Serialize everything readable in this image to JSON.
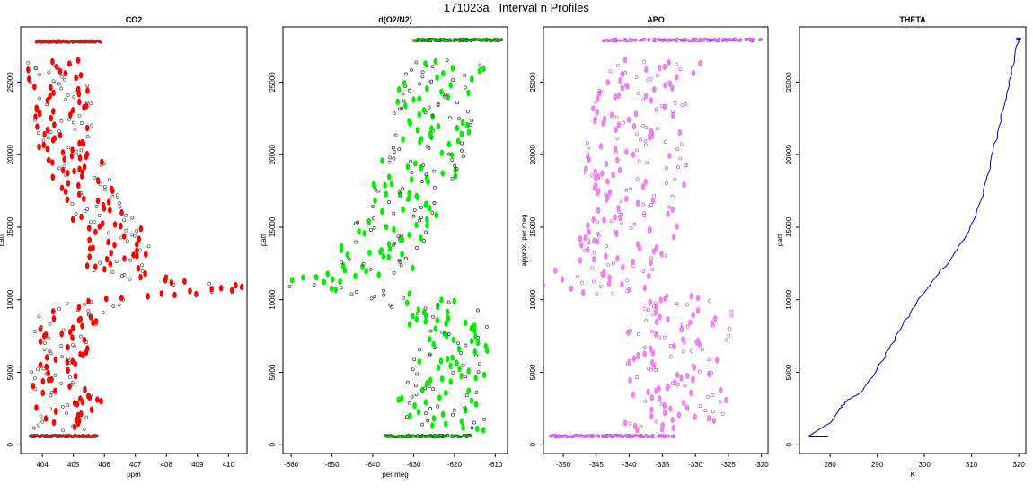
{
  "figure": {
    "title": "171023a   Interval n Profiles"
  },
  "chart_data": [
    {
      "type": "scatter",
      "title": "CO2",
      "xlabel": "ppm",
      "ylabel": "patt",
      "xlim": [
        403.3,
        410.6
      ],
      "ylim": [
        -600,
        28800
      ],
      "xticks": [
        404,
        405,
        406,
        407,
        408,
        409,
        410
      ],
      "yticks": [
        0,
        5000,
        10000,
        15000,
        20000,
        25000
      ],
      "colors": {
        "points": "#ff0000",
        "edge": "#555555"
      },
      "grid": false
    },
    {
      "type": "scatter",
      "title": "d(O2/N2)",
      "xlabel": "per meg",
      "ylabel": "patt",
      "xlim": [
        -662,
        -607
      ],
      "ylim": [
        -600,
        28800
      ],
      "xticks": [
        -660,
        -650,
        -640,
        -630,
        -620,
        -610
      ],
      "yticks": [
        0,
        5000,
        10000,
        15000,
        20000,
        25000
      ],
      "colors": {
        "points": "#00ee00",
        "edge": "#333333"
      },
      "grid": false
    },
    {
      "type": "scatter",
      "title": "APO",
      "xlabel": "",
      "ylabel": "approx. per meg",
      "xlim": [
        -353,
        -319
      ],
      "ylim": [
        -600,
        28800
      ],
      "xticks": [
        -350,
        -345,
        -340,
        -335,
        -330,
        -325,
        -320
      ],
      "yticks": [
        0,
        5000,
        10000,
        15000,
        20000,
        25000
      ],
      "colors": {
        "points": "#ee82ee",
        "edge": "#a040f0"
      },
      "grid": false
    },
    {
      "type": "line",
      "title": "THETA",
      "xlabel": "K",
      "ylabel": "patt",
      "xlim": [
        273.5,
        321.5
      ],
      "ylim": [
        -600,
        28800
      ],
      "xticks": [
        280,
        290,
        300,
        310,
        320
      ],
      "yticks": [
        0,
        5000,
        10000,
        15000,
        20000,
        25000
      ],
      "colors": {
        "line": "#0000cc"
      },
      "grid": false,
      "x": [
        275.5,
        280.0,
        282.0,
        283.5,
        286.0,
        288.0,
        290.0,
        292.5,
        295.0,
        297.5,
        300.0,
        303.0,
        306.0,
        308.5,
        310.5,
        312.5,
        314.0,
        315.5,
        317.0,
        318.5,
        319.5,
        320.0
      ],
      "y": [
        600,
        1500,
        2500,
        3000,
        3500,
        4300,
        5300,
        6600,
        8000,
        9400,
        10500,
        11800,
        13000,
        14200,
        15500,
        17200,
        19500,
        21500,
        23500,
        25500,
        27500,
        28000
      ]
    }
  ]
}
